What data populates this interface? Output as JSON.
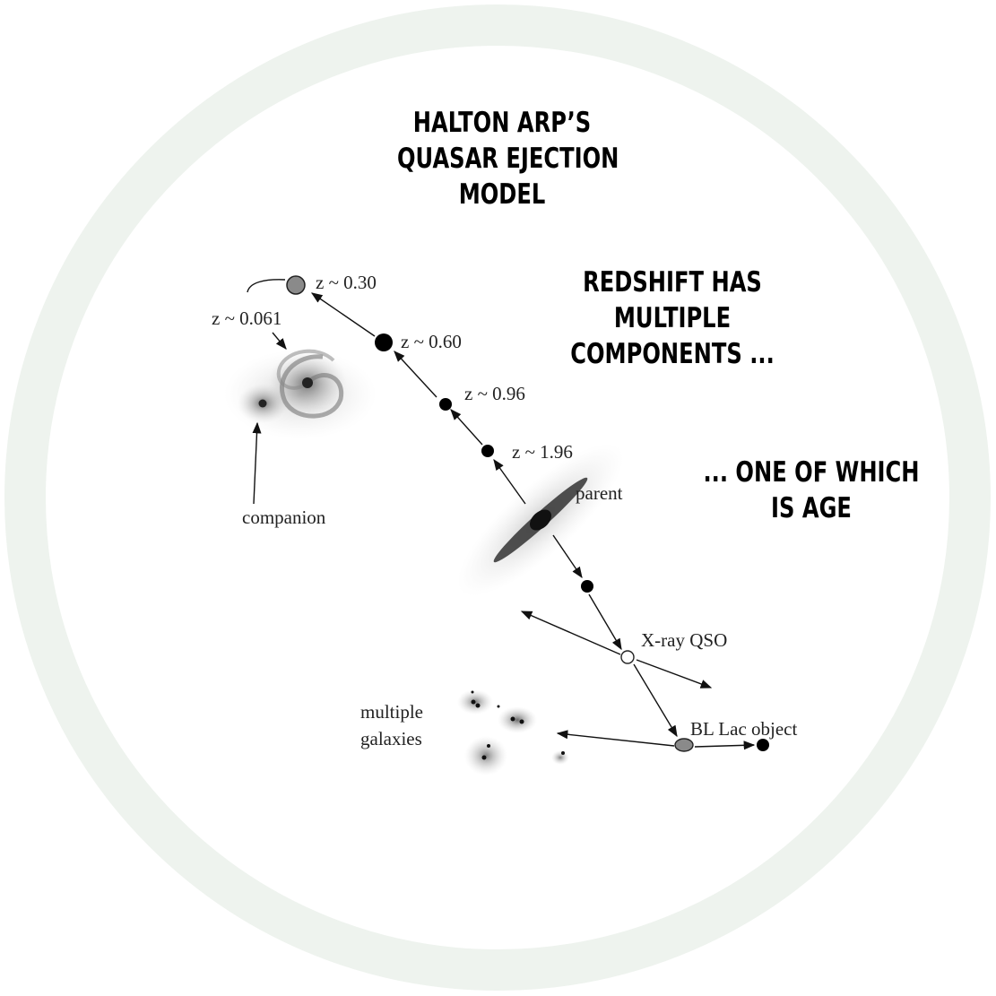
{
  "colors": {
    "ring": "#eef3ee",
    "ink": "#111111",
    "grey_body": "#8a8a8a"
  },
  "title": {
    "lines": [
      "HALTON ARP’S",
      "QUASAR EJECTION",
      "MODEL"
    ]
  },
  "caption_1": {
    "lines": [
      "REDSHIFT HAS",
      "MULTIPLE",
      "COMPONENTS ..."
    ]
  },
  "caption_2": {
    "lines": [
      "... ONE OF WHICH",
      "IS AGE"
    ]
  },
  "labels": {
    "z030": "z ~ 0.30",
    "z0061": "z ~ 0.061",
    "z060": "z ~ 0.60",
    "z096": "z ~ 0.96",
    "z196": "z ~ 1.96",
    "parent": "parent",
    "companion": "companion",
    "xray": "X-ray QSO",
    "bllac": "BL Lac object",
    "multiple": "multiple",
    "galaxies": "galaxies"
  }
}
